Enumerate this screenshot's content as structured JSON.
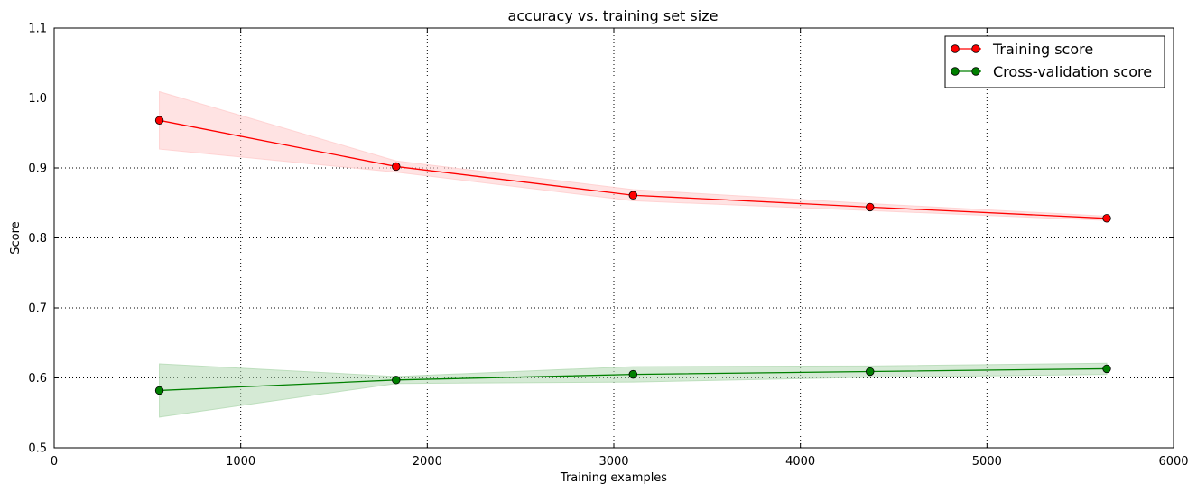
{
  "chart_data": {
    "type": "line",
    "title": "accuracy vs. training set size",
    "xlabel": "Training examples",
    "ylabel": "Score",
    "xlim": [
      0,
      6000
    ],
    "ylim": [
      0.5,
      1.1
    ],
    "xticks": [
      0,
      1000,
      2000,
      3000,
      4000,
      5000,
      6000
    ],
    "yticks": [
      0.5,
      0.6,
      0.7,
      0.8,
      0.9,
      1.0,
      1.1
    ],
    "xtick_labels": [
      "0",
      "1000",
      "2000",
      "3000",
      "4000",
      "5000",
      "6000"
    ],
    "ytick_labels": [
      "0.5",
      "0.6",
      "0.7",
      "0.8",
      "0.9",
      "1.0",
      "1.1"
    ],
    "grid": true,
    "legend_position": "top-right",
    "x": [
      564,
      1833,
      3103,
      4373,
      5642
    ],
    "series": [
      {
        "name": "Training score",
        "color": "#ff0000",
        "band_color": "#ffcccc",
        "values": [
          0.968,
          0.902,
          0.861,
          0.844,
          0.828
        ],
        "upper": [
          1.009,
          0.91,
          0.869,
          0.849,
          0.831
        ],
        "lower": [
          0.927,
          0.894,
          0.853,
          0.839,
          0.825
        ]
      },
      {
        "name": "Cross-validation score",
        "color": "#008000",
        "band_color": "#b3d9b3",
        "values": [
          0.582,
          0.597,
          0.605,
          0.609,
          0.613
        ],
        "upper": [
          0.62,
          0.602,
          0.616,
          0.617,
          0.621
        ],
        "lower": [
          0.544,
          0.592,
          0.594,
          0.601,
          0.605
        ]
      }
    ]
  }
}
